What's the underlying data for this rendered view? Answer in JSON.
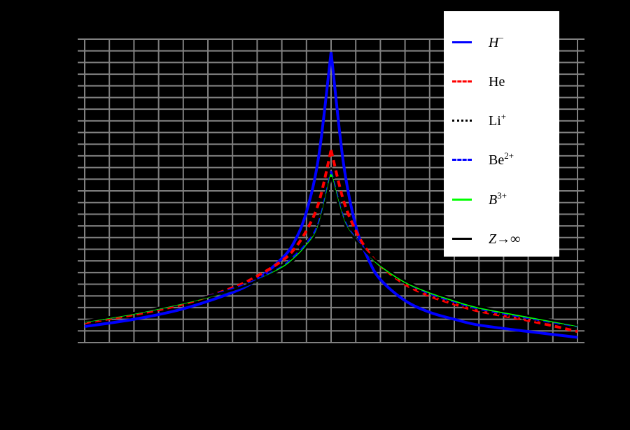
{
  "chart_data": {
    "type": "line",
    "title": "",
    "xlabel": "",
    "ylabel": "",
    "background": "#000000",
    "grid": true,
    "grid_color": "#808080",
    "tick_labels_visible": false,
    "note": "Axis tick labels and axis titles are rendered black on a black background (not readable). Values below are in grid units: x = grid columns from center cusp (-10..10), y = grid rows above bottom axis (0..26).",
    "xlim": [
      -10,
      10
    ],
    "ylim": [
      0,
      26
    ],
    "x_major_ticks": [
      -10,
      -5,
      0,
      5,
      10
    ],
    "y_major_ticks": [
      0,
      5,
      10,
      15,
      20,
      25
    ],
    "legend_position": "upper right",
    "series": [
      {
        "name": "H−",
        "color": "#0000ff",
        "style": "solid",
        "width": 4,
        "points": [
          [
            -10,
            1.38
          ],
          [
            -8,
            2.0
          ],
          [
            -6,
            2.9
          ],
          [
            -4,
            4.3
          ],
          [
            -3,
            5.4
          ],
          [
            -2,
            7.2
          ],
          [
            -1.5,
            8.6
          ],
          [
            -1,
            11.2
          ],
          [
            -0.5,
            16.0
          ],
          [
            0,
            24.9
          ],
          [
            0.5,
            15.4
          ],
          [
            1,
            10.0
          ],
          [
            1.5,
            7.2
          ],
          [
            2,
            5.4
          ],
          [
            3,
            3.6
          ],
          [
            4,
            2.6
          ],
          [
            5,
            2.0
          ],
          [
            6,
            1.5
          ],
          [
            8,
            0.95
          ],
          [
            10,
            0.45
          ]
        ]
      },
      {
        "name": "He",
        "color": "#ff0000",
        "style": "dashed",
        "width": 4,
        "points": [
          [
            -10,
            1.7
          ],
          [
            -8,
            2.4
          ],
          [
            -6,
            3.3
          ],
          [
            -4,
            4.7
          ],
          [
            -3,
            5.7
          ],
          [
            -2,
            7.0
          ],
          [
            -1.5,
            8.0
          ],
          [
            -1,
            9.6
          ],
          [
            -0.5,
            12.0
          ],
          [
            0,
            16.5
          ],
          [
            0.5,
            12.2
          ],
          [
            1,
            9.6
          ],
          [
            1.5,
            7.8
          ],
          [
            2,
            6.6
          ],
          [
            3,
            5.0
          ],
          [
            4,
            4.0
          ],
          [
            5,
            3.3
          ],
          [
            6,
            2.7
          ],
          [
            8,
            1.9
          ],
          [
            10,
            0.95
          ]
        ]
      },
      {
        "name": "Li+",
        "color": "#000000",
        "style": "dotted",
        "width": 3,
        "points": [
          [
            -10,
            1.75
          ],
          [
            -8,
            2.5
          ],
          [
            -6,
            3.4
          ],
          [
            -4,
            4.6
          ],
          [
            -3,
            5.5
          ],
          [
            -2,
            6.6
          ],
          [
            -1.5,
            7.5
          ],
          [
            -1,
            8.7
          ],
          [
            -0.5,
            10.6
          ],
          [
            0,
            15.0
          ],
          [
            0.5,
            10.9
          ],
          [
            1,
            9.0
          ],
          [
            1.5,
            7.6
          ],
          [
            2,
            6.6
          ],
          [
            3,
            5.1
          ],
          [
            4,
            4.1
          ],
          [
            5,
            3.4
          ],
          [
            6,
            2.8
          ],
          [
            8,
            2.0
          ],
          [
            10,
            1.35
          ]
        ]
      },
      {
        "name": "Be2+",
        "color": "#0000ff",
        "style": "dashed",
        "width": 3,
        "points": [
          [
            -10,
            1.8
          ],
          [
            -8,
            2.5
          ],
          [
            -6,
            3.4
          ],
          [
            -4,
            4.6
          ],
          [
            -3,
            5.4
          ],
          [
            -2,
            6.5
          ],
          [
            -1.5,
            7.4
          ],
          [
            -1,
            8.5
          ],
          [
            -0.5,
            10.3
          ],
          [
            0,
            14.7
          ],
          [
            0.5,
            10.7
          ],
          [
            1,
            8.9
          ],
          [
            1.5,
            7.6
          ],
          [
            2,
            6.6
          ],
          [
            3,
            5.2
          ],
          [
            4,
            4.2
          ],
          [
            5,
            3.5
          ],
          [
            6,
            2.9
          ],
          [
            8,
            2.1
          ],
          [
            10,
            1.4
          ]
        ]
      },
      {
        "name": "B3+",
        "color": "#00ff00",
        "style": "solid",
        "width": 3,
        "points": [
          [
            -10,
            1.8
          ],
          [
            -8,
            2.5
          ],
          [
            -6,
            3.4
          ],
          [
            -4,
            4.5
          ],
          [
            -3,
            5.3
          ],
          [
            -2,
            6.4
          ],
          [
            -1.5,
            7.2
          ],
          [
            -1,
            8.3
          ],
          [
            -0.5,
            10.0
          ],
          [
            0,
            14.4
          ],
          [
            0.5,
            10.5
          ],
          [
            1,
            8.8
          ],
          [
            1.5,
            7.6
          ],
          [
            2,
            6.6
          ],
          [
            3,
            5.2
          ],
          [
            4,
            4.3
          ],
          [
            5,
            3.6
          ],
          [
            6,
            3.0
          ],
          [
            8,
            2.2
          ],
          [
            10,
            1.45
          ]
        ]
      },
      {
        "name": "Z→∞",
        "color": "#000000",
        "style": "solid",
        "width": 3,
        "points": [
          [
            -10,
            1.85
          ],
          [
            -8,
            2.55
          ],
          [
            -6,
            3.45
          ],
          [
            -4,
            4.5
          ],
          [
            -3,
            5.3
          ],
          [
            -2,
            6.3
          ],
          [
            -1.5,
            7.1
          ],
          [
            -1,
            8.2
          ],
          [
            -0.5,
            9.9
          ],
          [
            0,
            14.2
          ],
          [
            0.5,
            10.4
          ],
          [
            1,
            8.8
          ],
          [
            1.5,
            7.6
          ],
          [
            2,
            6.7
          ],
          [
            3,
            5.3
          ],
          [
            4,
            4.4
          ],
          [
            5,
            3.7
          ],
          [
            6,
            3.1
          ],
          [
            8,
            2.3
          ],
          [
            10,
            1.5
          ]
        ]
      }
    ]
  },
  "legend": {
    "items": [
      {
        "base": "H",
        "sup": "−",
        "italic": true
      },
      {
        "base": "He",
        "sup": "",
        "italic": false
      },
      {
        "base": "Li",
        "sup": "+",
        "italic": false
      },
      {
        "base": "Be",
        "sup": "2+",
        "italic": false
      },
      {
        "base": "B",
        "sup": "3+",
        "italic": true
      },
      {
        "base": "Z→∞",
        "sup": "",
        "italic": true
      }
    ]
  }
}
